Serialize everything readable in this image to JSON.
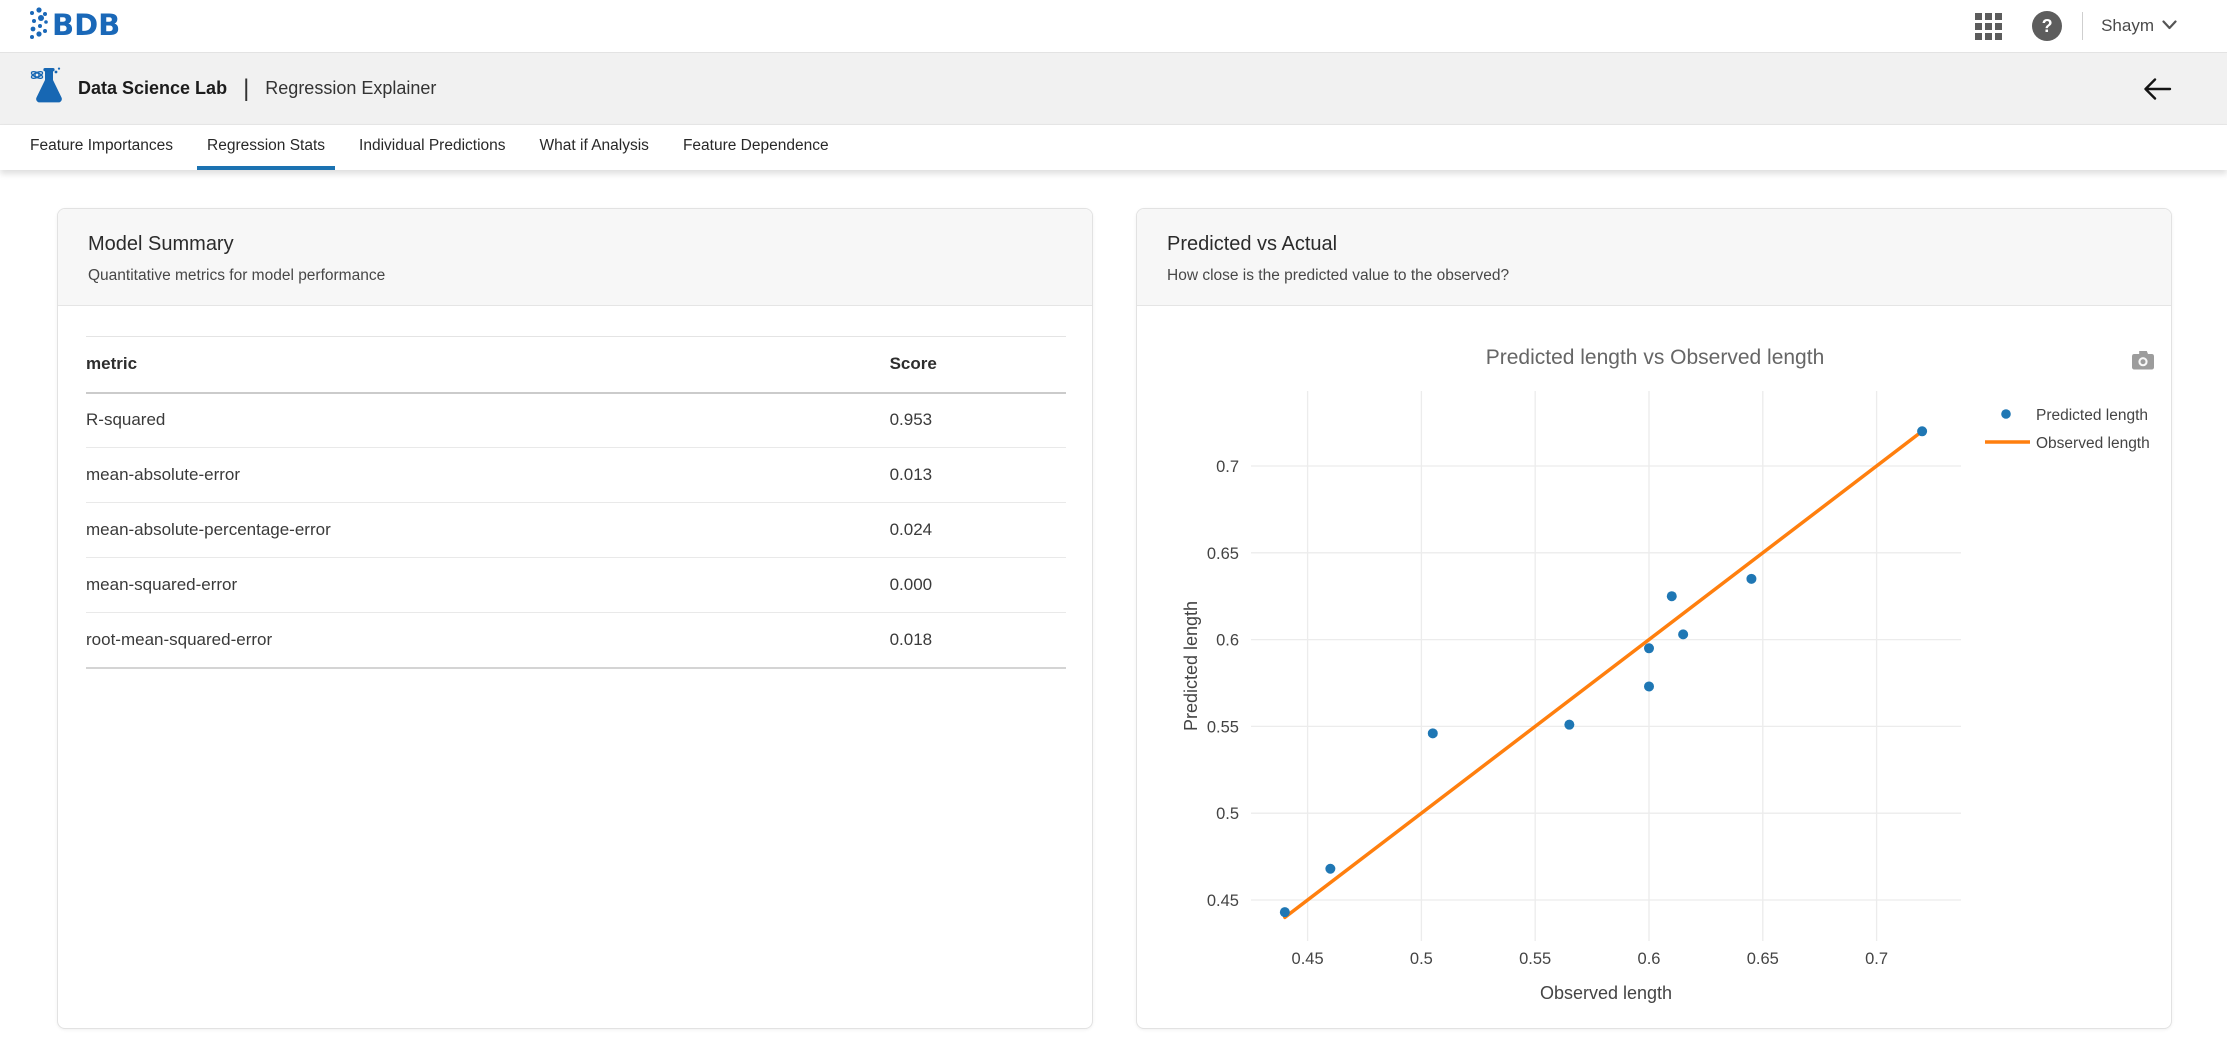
{
  "topbar": {
    "logo": {
      "icon": "bdb-logo",
      "text": "BDB",
      "color": "#1a68b8"
    },
    "apps_icon": "apps-grid-icon",
    "help": {
      "icon": "help-icon",
      "glyph": "?"
    },
    "user": {
      "name": "Shaym",
      "menu_icon": "chevron-down-icon"
    }
  },
  "subheader": {
    "app_icon": "flask-icon",
    "app_name": "Data Science Lab",
    "separator": "|",
    "page_title": "Regression Explainer",
    "back_icon": "arrow-left-icon"
  },
  "tabs": [
    {
      "label": "Feature Importances",
      "active": false
    },
    {
      "label": "Regression Stats",
      "active": true
    },
    {
      "label": "Individual Predictions",
      "active": false
    },
    {
      "label": "What if Analysis",
      "active": false
    },
    {
      "label": "Feature Dependence",
      "active": false
    }
  ],
  "model_summary": {
    "title": "Model Summary",
    "subtitle": "Quantitative metrics for model performance",
    "table": {
      "columns": [
        "metric",
        "Score"
      ],
      "rows": [
        {
          "metric": "R-squared",
          "score": "0.953"
        },
        {
          "metric": "mean-absolute-error",
          "score": "0.013"
        },
        {
          "metric": "mean-absolute-percentage-error",
          "score": "0.024"
        },
        {
          "metric": "mean-squared-error",
          "score": "0.000"
        },
        {
          "metric": "root-mean-squared-error",
          "score": "0.018"
        }
      ]
    }
  },
  "predicted_vs_actual": {
    "title": "Predicted vs Actual",
    "subtitle": "How close is the predicted value to the observed?",
    "camera_icon": "camera-icon"
  },
  "chart_data": {
    "type": "scatter",
    "title": "Predicted length vs Observed length",
    "xlabel": "Observed length",
    "ylabel": "Predicted length",
    "xlim": [
      0.425,
      0.737
    ],
    "ylim": [
      0.426,
      0.743
    ],
    "xticks": [
      0.45,
      0.5,
      0.55,
      0.6,
      0.65,
      0.7
    ],
    "yticks": [
      0.45,
      0.5,
      0.55,
      0.6,
      0.65,
      0.7
    ],
    "grid": true,
    "legend_position": "top-right-outside",
    "series": [
      {
        "name": "Predicted length",
        "type": "scatter",
        "color": "#1f77b4",
        "points": [
          [
            0.44,
            0.443
          ],
          [
            0.46,
            0.468
          ],
          [
            0.505,
            0.546
          ],
          [
            0.565,
            0.551
          ],
          [
            0.6,
            0.573
          ],
          [
            0.6,
            0.595
          ],
          [
            0.61,
            0.625
          ],
          [
            0.615,
            0.603
          ],
          [
            0.645,
            0.635
          ],
          [
            0.72,
            0.72
          ]
        ]
      },
      {
        "name": "Observed length",
        "type": "line",
        "color": "#ff7f0e",
        "points": [
          [
            0.44,
            0.44
          ],
          [
            0.72,
            0.72
          ]
        ]
      }
    ]
  },
  "colors": {
    "accent_blue": "#1b72b1",
    "logo_blue": "#1a68b8",
    "marker_blue": "#1f77b4",
    "line_orange": "#ff7f0e",
    "subheader_bg": "#f1f1f1",
    "card_header_bg": "#f7f7f7",
    "chart_title_gray": "#666666",
    "axis_text": "#444444",
    "gridline": "#ececec"
  }
}
